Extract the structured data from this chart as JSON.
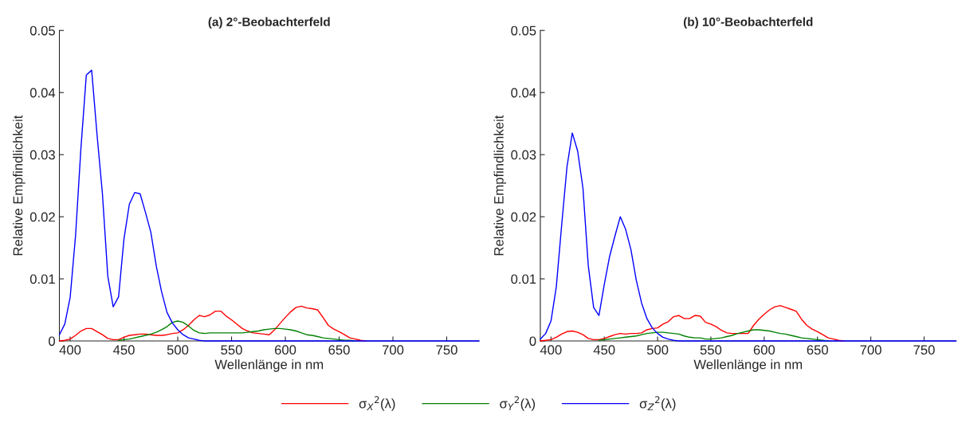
{
  "chart_data": [
    {
      "type": "line",
      "title": "(a) 2°-Beobachterfeld",
      "xlabel": "Wellenlänge in nm",
      "ylabel": "Relative Empfindlichkeit",
      "legend": "bottom",
      "grid": false,
      "xlim": [
        390,
        780
      ],
      "xticks": [
        400,
        450,
        500,
        550,
        600,
        650,
        700,
        750
      ],
      "ylim": [
        0,
        0.05
      ],
      "yticks": [
        0,
        0.01,
        0.02,
        0.03,
        0.04,
        0.05
      ],
      "x": [
        390,
        395,
        400,
        405,
        410,
        415,
        420,
        425,
        430,
        435,
        440,
        445,
        450,
        455,
        460,
        465,
        470,
        475,
        480,
        485,
        490,
        495,
        500,
        505,
        510,
        515,
        520,
        525,
        530,
        535,
        540,
        545,
        550,
        555,
        560,
        565,
        570,
        575,
        580,
        585,
        590,
        595,
        600,
        605,
        610,
        615,
        620,
        625,
        630,
        635,
        640,
        645,
        650,
        655,
        660,
        665,
        670,
        675,
        680,
        685,
        690,
        695,
        700,
        780
      ],
      "series": [
        {
          "name": "σ$_{X}$$^{2}$(λ)",
          "color": "#ff0000",
          "values": [
            0,
            0.0001,
            0.0003,
            0.0009,
            0.0016,
            0.002,
            0.002,
            0.0015,
            0.001,
            0.0004,
            0.0002,
            0.0002,
            0.0006,
            0.0009,
            0.001,
            0.0011,
            0.0011,
            0.001,
            0.0009,
            0.0009,
            0.001,
            0.0012,
            0.0013,
            0.0018,
            0.0025,
            0.0034,
            0.0041,
            0.0039,
            0.0042,
            0.0048,
            0.0048,
            0.004,
            0.0034,
            0.0027,
            0.002,
            0.0016,
            0.0013,
            0.0012,
            0.0011,
            0.001,
            0.0018,
            0.0028,
            0.0038,
            0.0047,
            0.0054,
            0.0056,
            0.0053,
            0.0052,
            0.005,
            0.0038,
            0.0025,
            0.0019,
            0.0015,
            0.001,
            0.0005,
            0.0003,
            0.0001,
            0,
            null,
            null,
            null,
            null,
            null,
            null
          ]
        },
        {
          "name": "σ$_{Y}$$^{2}$(λ)",
          "color": "#008000",
          "values": [
            null,
            null,
            null,
            null,
            null,
            null,
            null,
            null,
            null,
            null,
            null,
            0.0001,
            0.0002,
            0.0003,
            0.0005,
            0.0007,
            0.0009,
            0.0011,
            0.0014,
            0.0018,
            0.0023,
            0.003,
            0.0032,
            0.003,
            0.0024,
            0.0017,
            0.0013,
            0.0012,
            0.0013,
            0.0013,
            0.0013,
            0.0013,
            0.0013,
            0.0013,
            0.0013,
            0.0014,
            0.0015,
            0.0016,
            0.0018,
            0.0019,
            0.002,
            0.002,
            0.0019,
            0.0018,
            0.0016,
            0.0013,
            0.001,
            0.0009,
            0.0007,
            0.0005,
            0.0004,
            0.0003,
            0.0002,
            0.0001,
            0.0001,
            0,
            null,
            null,
            null,
            null,
            null,
            null,
            null,
            null
          ]
        },
        {
          "name": "σ$_{Z}$$^{2}$(λ)",
          "color": "#0000ff",
          "values": [
            0.001,
            0.0027,
            0.007,
            0.0169,
            0.031,
            0.0428,
            0.0436,
            0.0332,
            0.0237,
            0.0104,
            0.0055,
            0.0071,
            0.0164,
            0.022,
            0.0239,
            0.0237,
            0.0207,
            0.0175,
            0.0121,
            0.0079,
            0.0046,
            0.0029,
            0.0018,
            0.001,
            0.0005,
            0.0003,
            0.0001,
            0,
            0,
            0,
            0,
            0,
            0,
            0,
            0,
            0,
            0,
            0,
            0,
            0,
            0,
            0,
            0,
            0,
            0,
            0,
            0,
            0,
            0,
            0,
            0,
            0,
            0,
            0,
            0,
            0,
            0,
            0,
            0,
            0,
            0,
            0,
            0,
            0
          ]
        }
      ]
    },
    {
      "type": "line",
      "title": "(b) 10°-Beobachterfeld",
      "xlabel": "Wellenlänge in nm",
      "ylabel": "Relative Empfindlichkeit",
      "grid": false,
      "xlim": [
        390,
        780
      ],
      "xticks": [
        400,
        450,
        500,
        550,
        600,
        650,
        700,
        750
      ],
      "ylim": [
        0,
        0.05
      ],
      "yticks": [
        0,
        0.01,
        0.02,
        0.03,
        0.04,
        0.05
      ],
      "x": [
        390,
        395,
        400,
        405,
        410,
        415,
        420,
        425,
        430,
        435,
        440,
        445,
        450,
        455,
        460,
        465,
        470,
        475,
        480,
        485,
        490,
        495,
        500,
        505,
        510,
        515,
        520,
        525,
        530,
        535,
        540,
        545,
        550,
        555,
        560,
        565,
        570,
        575,
        580,
        585,
        590,
        595,
        600,
        605,
        610,
        615,
        620,
        625,
        630,
        635,
        640,
        645,
        650,
        655,
        660,
        665,
        670,
        675,
        680,
        685,
        690,
        695,
        700,
        780
      ],
      "series": [
        {
          "color": "#ff0000",
          "values": [
            0,
            0.0001,
            0.0002,
            0.0006,
            0.0011,
            0.0015,
            0.0016,
            0.0014,
            0.001,
            0.0004,
            0.0002,
            0.0002,
            0.0004,
            0.0007,
            0.001,
            0.0012,
            0.0011,
            0.0012,
            0.0012,
            0.0013,
            0.0018,
            0.002,
            0.0021,
            0.0027,
            0.0031,
            0.0039,
            0.0041,
            0.0036,
            0.0036,
            0.0041,
            0.004,
            0.003,
            0.0027,
            0.0023,
            0.0017,
            0.0013,
            0.0012,
            0.0012,
            0.0012,
            0.0012,
            0.0025,
            0.0035,
            0.0043,
            0.005,
            0.0055,
            0.0057,
            0.0054,
            0.0051,
            0.0048,
            0.0035,
            0.0025,
            0.0019,
            0.0015,
            0.001,
            0.0005,
            0.0003,
            0.0001,
            0,
            null,
            null,
            null,
            null,
            null,
            null
          ]
        },
        {
          "color": "#008000",
          "values": [
            null,
            null,
            null,
            null,
            null,
            null,
            null,
            null,
            null,
            null,
            null,
            0.0001,
            0.0002,
            0.0003,
            0.0004,
            0.0005,
            0.0006,
            0.0007,
            0.0008,
            0.001,
            0.0012,
            0.0013,
            0.0014,
            0.0014,
            0.0013,
            0.0012,
            0.0011,
            0.0008,
            0.0006,
            0.0005,
            0.0005,
            0.0003,
            0.0003,
            0.0004,
            0.0005,
            0.0007,
            0.0009,
            0.0012,
            0.0014,
            0.0016,
            0.0018,
            0.0018,
            0.0017,
            0.0016,
            0.0014,
            0.0012,
            0.0011,
            0.0009,
            0.0007,
            0.0005,
            0.0004,
            0.0003,
            0.0002,
            0.0001,
            0,
            null,
            null,
            null,
            null,
            null,
            null,
            null,
            null,
            null
          ]
        },
        {
          "color": "#0000ff",
          "values": [
            0.0003,
            0.0012,
            0.0032,
            0.0087,
            0.0186,
            0.028,
            0.0335,
            0.0306,
            0.0246,
            0.0121,
            0.0054,
            0.0041,
            0.0091,
            0.0136,
            0.0169,
            0.02,
            0.018,
            0.0147,
            0.0098,
            0.0061,
            0.0036,
            0.0021,
            0.0012,
            0.0006,
            0.0003,
            0.0001,
            0,
            0,
            0,
            0,
            0,
            0,
            0,
            0,
            0,
            0,
            0,
            0,
            0,
            0,
            0,
            0,
            0,
            0,
            0,
            0,
            0,
            0,
            0,
            0,
            0,
            0,
            0,
            0,
            0,
            0,
            0,
            0,
            0,
            0,
            0,
            0,
            0,
            0
          ]
        }
      ]
    }
  ]
}
